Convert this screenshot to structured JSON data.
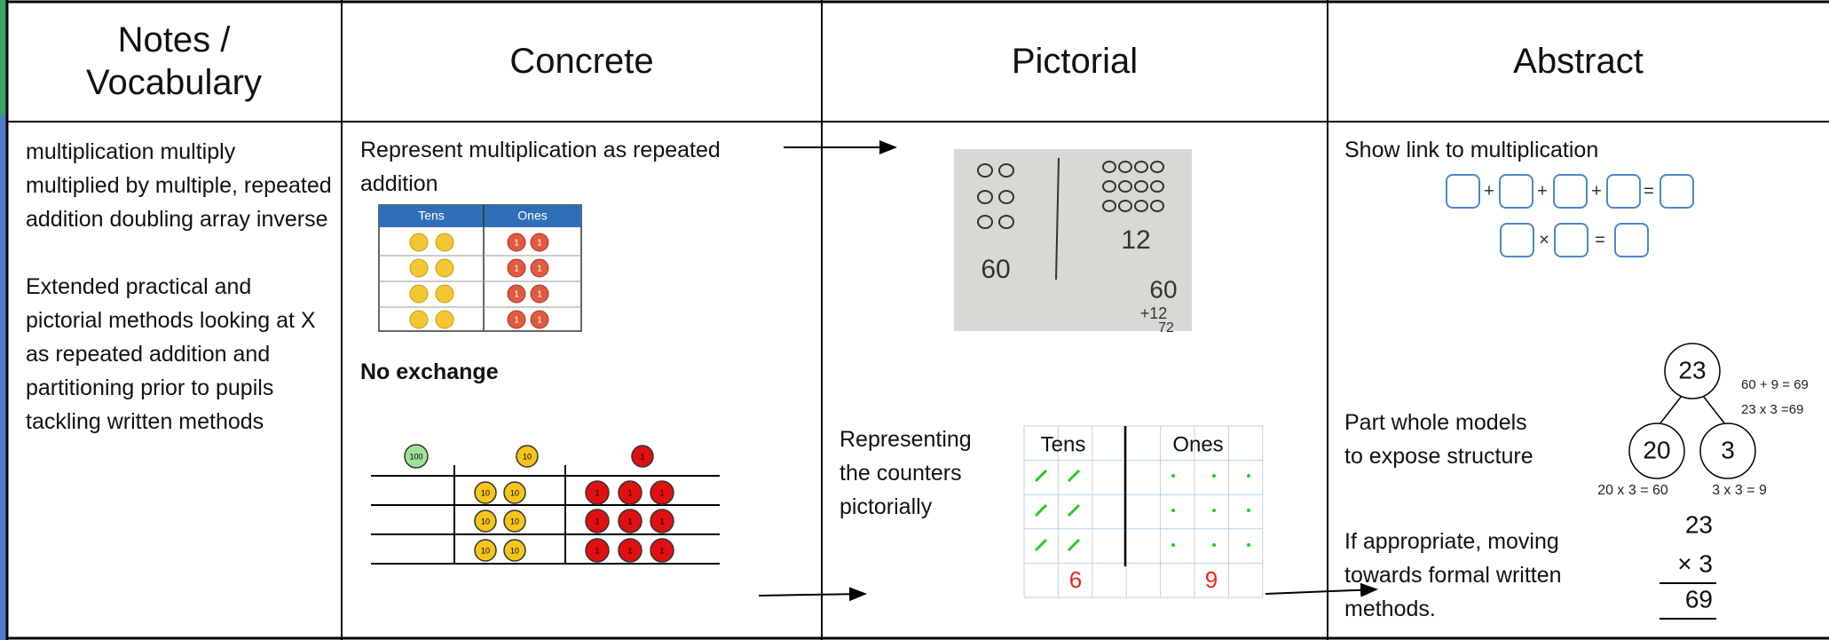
{
  "header": {
    "columns": [
      "Notes / Vocabulary",
      "Concrete",
      "Pictorial",
      "Abstract"
    ]
  },
  "notes": {
    "paragraphs": [
      "multiplication multiply multiplied by multiple, repeated addition doubling array inverse",
      "Extended practical and pictorial methods looking at X as repeated addition and partitioning prior to pupils tackling written methods"
    ]
  },
  "concrete": {
    "caption": "Represent multiplication as repeated addition",
    "table_headers": [
      "Tens",
      "Ones"
    ],
    "subheading": "No exchange",
    "counter_labels": {
      "hundred": "100",
      "ten": "10",
      "one": "1"
    }
  },
  "pictorial": {
    "photo_labels": [
      "60",
      "12",
      "60",
      "+12",
      "72"
    ],
    "caption": "Representing the counters pictorially",
    "grid_headers": [
      "Tens",
      "Ones"
    ],
    "grid_totals": [
      "6",
      "9"
    ]
  },
  "abstract": {
    "link_caption": "Show link to  multiplication",
    "operators": [
      "+",
      "=",
      "×"
    ],
    "part_whole_caption": "Part whole models to expose structure",
    "part_whole_nodes": [
      "23",
      "20",
      "3"
    ],
    "equations": [
      "60 + 9 = 69",
      "23 x 3 =69",
      "20 x 3 = 60",
      "3 x 3 = 9"
    ],
    "formal_caption": "If appropriate, moving towards formal written methods.",
    "column_method": [
      "23",
      "× 3",
      "69"
    ]
  }
}
